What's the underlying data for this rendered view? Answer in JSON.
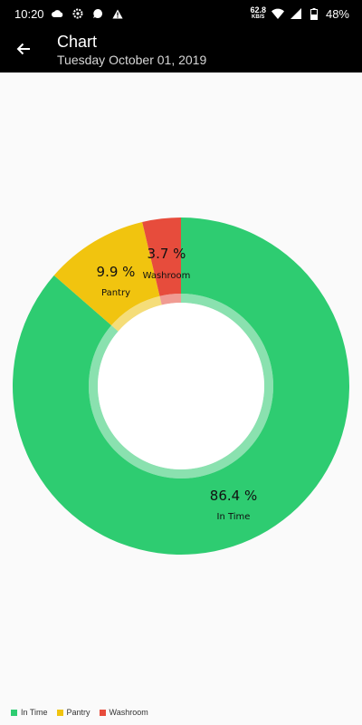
{
  "status_bar": {
    "time": "10:20",
    "net_speed_value": "62.8",
    "net_speed_unit": "KB/S",
    "battery": "48%",
    "icons": [
      "cloud-icon",
      "settings-icon",
      "chat-icon",
      "alert-icon",
      "wifi-icon",
      "signal-icon",
      "battery-icon"
    ]
  },
  "app_bar": {
    "title": "Chart",
    "subtitle": "Tuesday October 01, 2019",
    "back_icon": "arrow-left-icon"
  },
  "chart_data": {
    "type": "pie",
    "style": "donut",
    "categories": [
      "In Time",
      "Pantry",
      "Washroom"
    ],
    "values": [
      86.4,
      9.9,
      3.7
    ],
    "value_labels": [
      "86.4 %",
      "9.9 %",
      "3.7 %"
    ],
    "colors": [
      "#2ecc71",
      "#f1c40f",
      "#e74c3c"
    ],
    "legend_position": "bottom-left"
  }
}
